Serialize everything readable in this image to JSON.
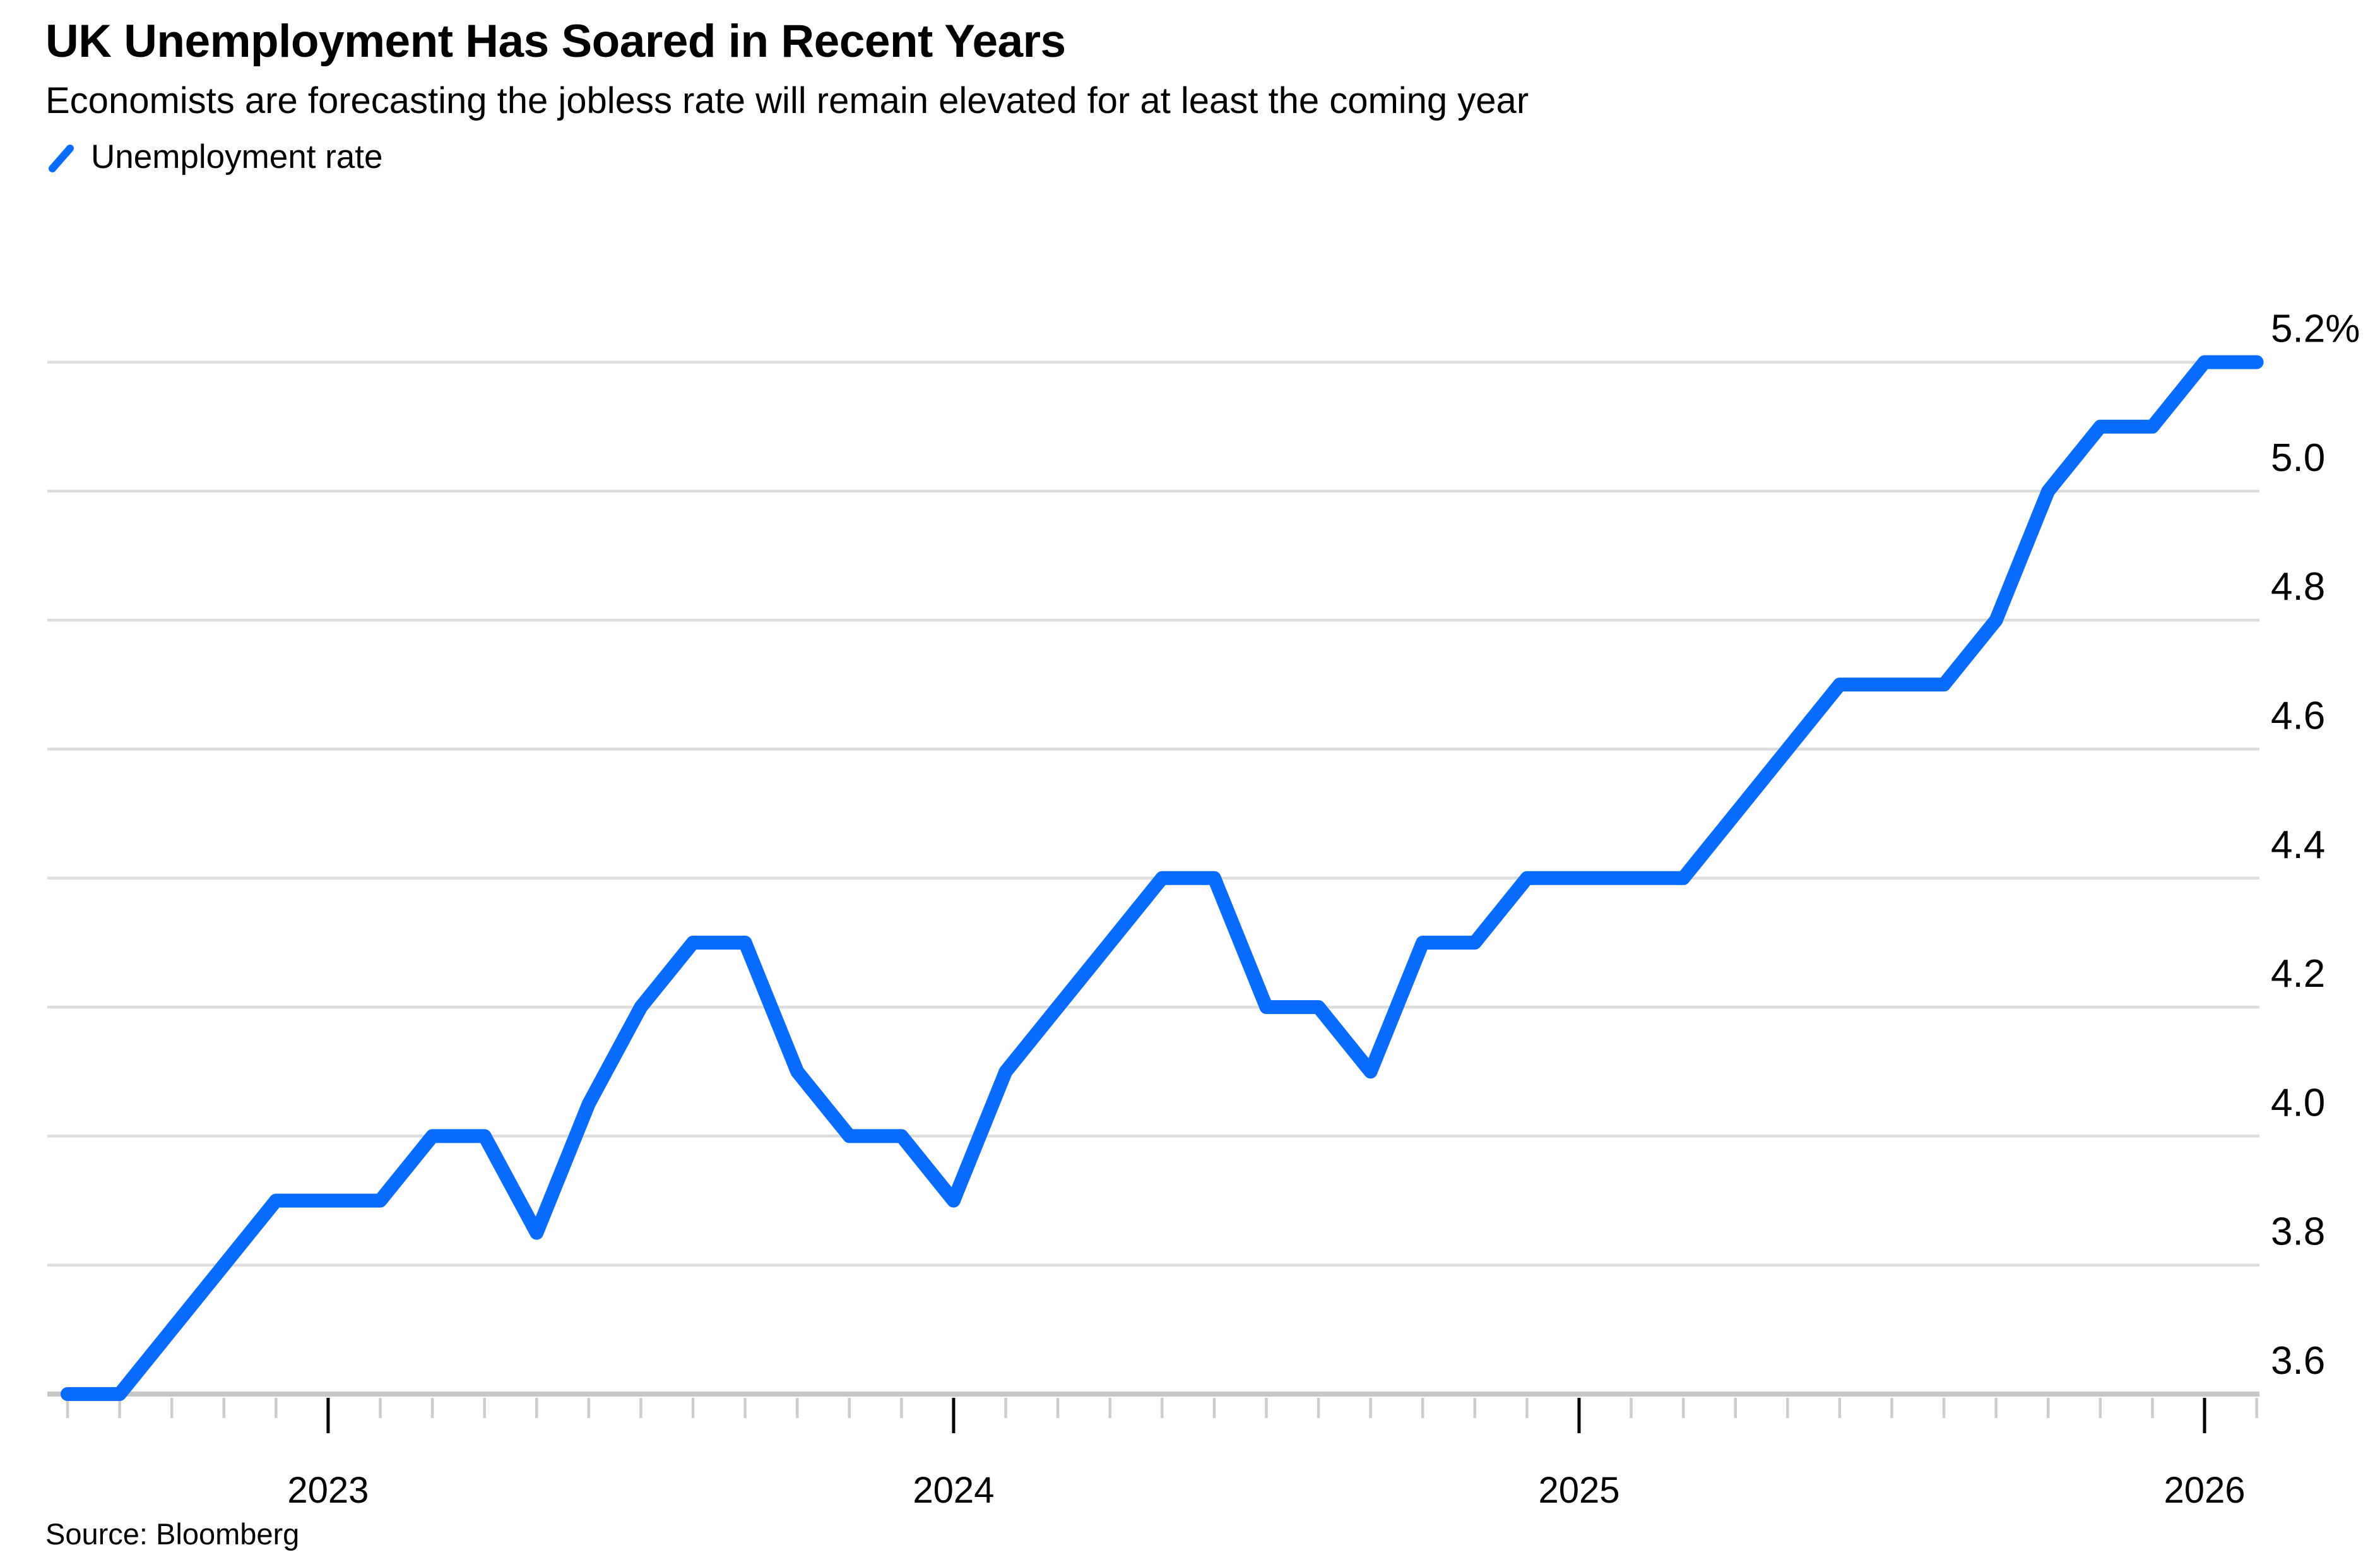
{
  "header": {
    "title": "UK Unemployment Has Soared in Recent Years",
    "subtitle": "Economists are forecasting the jobless rate will remain elevated for at least the coming year"
  },
  "legend": {
    "label": "Unemployment rate"
  },
  "source": "Source: Bloomberg",
  "colors": {
    "line": "#0a6cff",
    "grid": "#dcdcdc",
    "axis": "#c7c7c7",
    "tick_minor": "#cdcdcd",
    "tick_major": "#000000",
    "text": "#000000"
  },
  "chart_data": {
    "type": "line",
    "title": "UK Unemployment Has Soared in Recent Years",
    "ylabel": "",
    "xlabel": "",
    "ylim": [
      3.6,
      5.2
    ],
    "ytick_step": 0.2,
    "grid": "horizontal",
    "legend_position": "top-left",
    "y_ticks": [
      {
        "label": "5.2%",
        "value": 5.2
      },
      {
        "label": "5.0",
        "value": 5.0
      },
      {
        "label": "4.8",
        "value": 4.8
      },
      {
        "label": "4.6",
        "value": 4.6
      },
      {
        "label": "4.4",
        "value": 4.4
      },
      {
        "label": "4.2",
        "value": 4.2
      },
      {
        "label": "4.0",
        "value": 4.0
      },
      {
        "label": "3.8",
        "value": 3.8
      },
      {
        "label": "3.6",
        "value": 3.6
      }
    ],
    "x_major_ticks": [
      {
        "label": "2023",
        "x": "2023-01"
      },
      {
        "label": "2024",
        "x": "2024-01"
      },
      {
        "label": "2025",
        "x": "2025-01"
      },
      {
        "label": "2026",
        "x": "2026-01"
      }
    ],
    "x": [
      "2022-08",
      "2022-09",
      "2022-10",
      "2022-11",
      "2022-12",
      "2023-01",
      "2023-02",
      "2023-03",
      "2023-04",
      "2023-05",
      "2023-06",
      "2023-07",
      "2023-08",
      "2023-09",
      "2023-10",
      "2023-11",
      "2023-12",
      "2024-01",
      "2024-02",
      "2024-03",
      "2024-04",
      "2024-05",
      "2024-06",
      "2024-07",
      "2024-08",
      "2024-09",
      "2024-10",
      "2024-11",
      "2024-12",
      "2025-01",
      "2025-02",
      "2025-03",
      "2025-04",
      "2025-05",
      "2025-06",
      "2025-07",
      "2025-08",
      "2025-09",
      "2025-10",
      "2025-11",
      "2025-12",
      "2026-01",
      "2026-02"
    ],
    "series": [
      {
        "name": "Unemployment rate",
        "values": [
          3.6,
          3.6,
          3.7,
          3.8,
          3.9,
          3.9,
          3.9,
          4.0,
          4.0,
          3.85,
          4.05,
          4.2,
          4.3,
          4.3,
          4.1,
          4.0,
          4.0,
          3.9,
          4.1,
          4.2,
          4.3,
          4.4,
          4.4,
          4.2,
          4.2,
          4.1,
          4.3,
          4.3,
          4.4,
          4.4,
          4.4,
          4.4,
          4.5,
          4.6,
          4.7,
          4.7,
          4.7,
          4.8,
          5.0,
          5.1,
          5.1,
          5.2,
          5.2
        ]
      }
    ]
  }
}
